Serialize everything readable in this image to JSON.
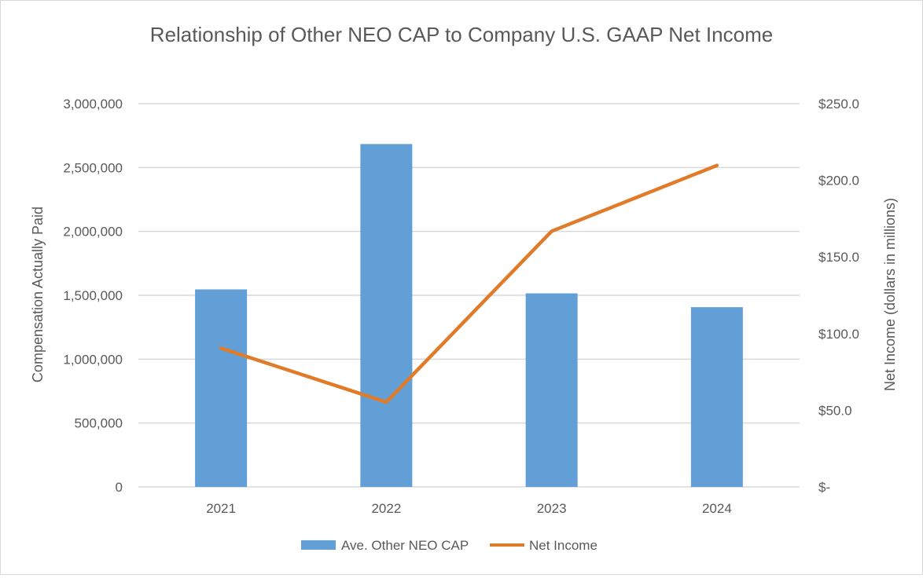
{
  "chart_data": {
    "type": "bar+line",
    "title": "Relationship of Other NEO CAP to Company U.S. GAAP Net Income",
    "categories": [
      "2021",
      "2022",
      "2023",
      "2024"
    ],
    "ylabel": "Compensation Actually Paid",
    "y2label": "Net Income (dollars in millions)",
    "ylim": [
      0,
      3000000
    ],
    "y2lim": [
      0,
      250
    ],
    "yticks": [
      0,
      500000,
      1000000,
      1500000,
      2000000,
      2500000,
      3000000
    ],
    "ytick_labels": [
      "0",
      "500,000",
      "1,000,000",
      "1,500,000",
      "2,000,000",
      "2,500,000",
      "3,000,000"
    ],
    "y2ticks": [
      0,
      50,
      100,
      150,
      200,
      250
    ],
    "y2tick_labels": [
      "$-",
      "$50.0",
      "$100.0",
      "$150.0",
      "$200.0",
      "$250.0"
    ],
    "grid": true,
    "legend_placement": "bottom",
    "series": [
      {
        "name": "Ave. Other NEO CAP",
        "type": "bar",
        "axis": "left",
        "color": "#629fd6",
        "values": [
          1546000,
          2684000,
          1515000,
          1407000
        ]
      },
      {
        "name": "Net Income",
        "type": "line",
        "axis": "right",
        "color": "#e07b2a",
        "values": [
          90.5,
          55.3,
          166.8,
          209.7
        ]
      }
    ]
  }
}
